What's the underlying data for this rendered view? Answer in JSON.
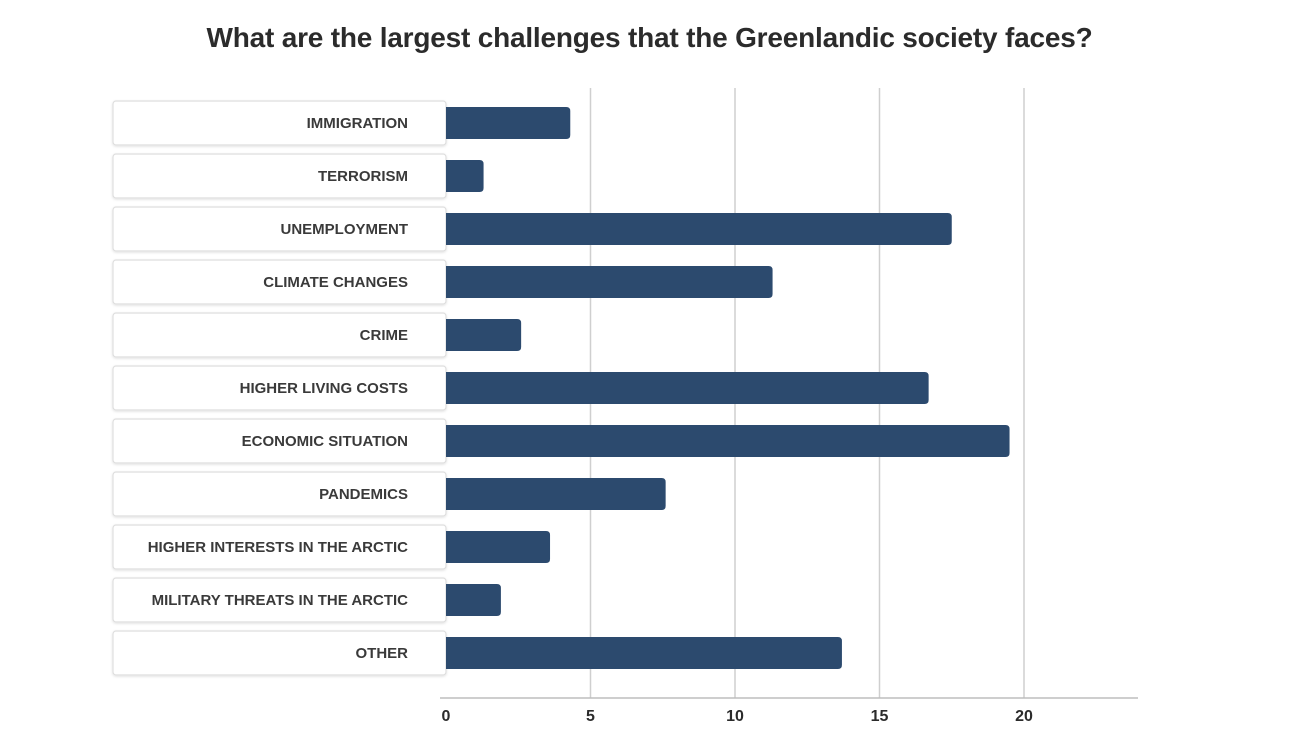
{
  "chart_data": {
    "type": "bar",
    "orientation": "horizontal",
    "title": "What are the largest challenges that the Greenlandic society faces?",
    "categories": [
      "IMMIGRATION",
      "TERRORISM",
      "UNEMPLOYMENT",
      "CLIMATE CHANGES",
      "CRIME",
      "HIGHER LIVING COSTS",
      "ECONOMIC SITUATION",
      "PANDEMICS",
      "HIGHER INTERESTS IN THE ARCTIC",
      "MILITARY THREATS IN THE ARCTIC",
      "OTHER"
    ],
    "values": [
      4.3,
      1.3,
      17.5,
      11.3,
      2.6,
      16.7,
      19.5,
      7.6,
      3.6,
      1.9,
      13.7
    ],
    "xlim": [
      0,
      24
    ],
    "xticks": [
      "0",
      "5",
      "10",
      "15",
      "20"
    ],
    "xlabel": "",
    "ylabel": "",
    "grid": true,
    "legend": "none",
    "colors": {
      "bar": "#2c4a6e",
      "grid": "#cfcfcf",
      "axis": "#bdbdbd",
      "label_box_border": "#dedede",
      "label_box_fill": "#ffffff"
    }
  }
}
